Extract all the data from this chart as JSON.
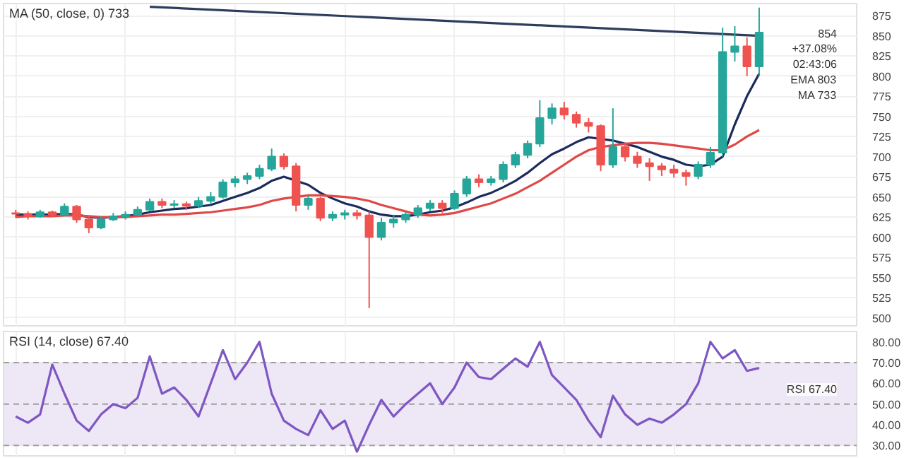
{
  "chart_data": [
    {
      "type": "candlestick",
      "categories": [
        null,
        null,
        null,
        null,
        null,
        null,
        null,
        null,
        null,
        null,
        null,
        null,
        null,
        null,
        null,
        null,
        null,
        null,
        null,
        null,
        null,
        null,
        null,
        null,
        null,
        null,
        null,
        null,
        null,
        null,
        null,
        null,
        null,
        null,
        null,
        null,
        null,
        null,
        null,
        null,
        null,
        null,
        null,
        null,
        null,
        null,
        null,
        null,
        null,
        null,
        null,
        null,
        null,
        null,
        null,
        null,
        null,
        null,
        null,
        null,
        null,
        null
      ],
      "ohlc": [
        [
          630,
          634,
          624,
          629
        ],
        [
          629,
          632,
          622,
          626
        ],
        [
          626,
          634,
          624,
          631
        ],
        [
          631,
          633,
          625,
          628
        ],
        [
          628,
          642,
          626,
          638
        ],
        [
          638,
          640,
          618,
          622
        ],
        [
          622,
          626,
          605,
          612
        ],
        [
          612,
          626,
          610,
          622
        ],
        [
          622,
          630,
          620,
          626
        ],
        [
          626,
          632,
          622,
          628
        ],
        [
          628,
          638,
          626,
          634
        ],
        [
          634,
          648,
          632,
          644
        ],
        [
          644,
          648,
          636,
          640
        ],
        [
          640,
          646,
          636,
          641
        ],
        [
          641,
          644,
          634,
          639
        ],
        [
          639,
          650,
          636,
          645
        ],
        [
          645,
          656,
          642,
          650
        ],
        [
          650,
          672,
          648,
          668
        ],
        [
          668,
          676,
          662,
          672
        ],
        [
          672,
          680,
          666,
          676
        ],
        [
          676,
          690,
          672,
          685
        ],
        [
          685,
          710,
          682,
          700
        ],
        [
          700,
          704,
          684,
          688
        ],
        [
          688,
          692,
          632,
          640
        ],
        [
          640,
          652,
          634,
          648
        ],
        [
          648,
          650,
          620,
          624
        ],
        [
          624,
          632,
          620,
          628
        ],
        [
          628,
          634,
          622,
          630
        ],
        [
          630,
          634,
          622,
          627
        ],
        [
          627,
          632,
          512,
          600
        ],
        [
          600,
          624,
          596,
          618
        ],
        [
          618,
          628,
          612,
          622
        ],
        [
          622,
          632,
          618,
          628
        ],
        [
          628,
          640,
          624,
          636
        ],
        [
          636,
          646,
          632,
          642
        ],
        [
          642,
          646,
          630,
          636
        ],
        [
          636,
          658,
          634,
          654
        ],
        [
          654,
          676,
          650,
          672
        ],
        [
          672,
          678,
          662,
          668
        ],
        [
          668,
          676,
          664,
          672
        ],
        [
          672,
          694,
          668,
          690
        ],
        [
          690,
          706,
          686,
          702
        ],
        [
          702,
          720,
          698,
          716
        ],
        [
          716,
          770,
          712,
          748
        ],
        [
          748,
          766,
          740,
          760
        ],
        [
          760,
          768,
          746,
          752
        ],
        [
          752,
          756,
          736,
          742
        ],
        [
          742,
          748,
          730,
          738
        ],
        [
          738,
          740,
          682,
          690
        ],
        [
          690,
          760,
          686,
          712
        ],
        [
          712,
          716,
          694,
          700
        ],
        [
          700,
          706,
          686,
          692
        ],
        [
          692,
          698,
          670,
          688
        ],
        [
          688,
          692,
          676,
          684
        ],
        [
          684,
          690,
          674,
          680
        ],
        [
          680,
          684,
          664,
          676
        ],
        [
          676,
          694,
          672,
          690
        ],
        [
          690,
          712,
          686,
          705
        ],
        [
          705,
          860,
          700,
          830
        ],
        [
          830,
          862,
          818,
          837
        ],
        [
          837,
          848,
          800,
          812
        ],
        [
          812,
          885,
          800,
          854
        ]
      ],
      "series": [
        {
          "type": "line",
          "color": "#1b2a5c",
          "values": [
            628,
            628,
            628,
            628,
            629,
            628,
            625,
            624,
            625,
            626,
            628,
            631,
            633,
            635,
            636,
            638,
            640,
            645,
            650,
            655,
            661,
            670,
            675,
            670,
            665,
            655,
            648,
            642,
            638,
            632,
            628,
            626,
            626,
            628,
            631,
            633,
            637,
            643,
            650,
            655,
            662,
            670,
            680,
            692,
            703,
            710,
            718,
            724,
            722,
            720,
            716,
            712,
            706,
            700,
            696,
            690,
            688,
            690,
            700,
            740,
            775,
            803
          ]
        },
        {
          "type": "line",
          "color": "#e04848",
          "values": [
            625,
            626,
            626,
            626,
            627,
            627,
            626,
            625,
            625,
            625,
            626,
            627,
            628,
            628,
            629,
            630,
            631,
            633,
            635,
            637,
            640,
            645,
            648,
            650,
            652,
            652,
            651,
            650,
            648,
            645,
            640,
            636,
            632,
            628,
            627,
            628,
            630,
            634,
            638,
            642,
            648,
            654,
            662,
            670,
            680,
            690,
            700,
            708,
            712,
            714,
            716,
            717,
            717,
            716,
            714,
            712,
            710,
            708,
            708,
            715,
            725,
            733
          ]
        },
        {
          "type": "line",
          "color": "#2e3d5c",
          "values": [
            null,
            null,
            null,
            null,
            null,
            null,
            null,
            null,
            null,
            null,
            null,
            886,
            null,
            null,
            null,
            null,
            null,
            null,
            null,
            null,
            null,
            null,
            null,
            null,
            null,
            null,
            null,
            null,
            null,
            null,
            null,
            null,
            null,
            null,
            null,
            null,
            null,
            null,
            null,
            null,
            null,
            null,
            null,
            null,
            null,
            null,
            null,
            null,
            null,
            null,
            null,
            null,
            null,
            null,
            null,
            null,
            null,
            null,
            null,
            null,
            null,
            850
          ]
        }
      ],
      "ylim": [
        490,
        890
      ],
      "yticks": [
        500,
        525,
        550,
        575,
        600,
        625,
        650,
        675,
        700,
        725,
        750,
        775,
        800,
        825,
        850,
        875
      ],
      "grid": true,
      "tick_labels": "y",
      "annotations": [
        "MA (50, close, 0) 733",
        "854",
        "+37.08%",
        "02:43:06",
        "EMA 803",
        "MA 733"
      ]
    },
    {
      "type": "line",
      "categories": [
        null,
        null,
        null,
        null,
        null,
        null,
        null,
        null,
        null,
        null,
        null,
        null,
        null,
        null,
        null,
        null,
        null,
        null,
        null,
        null,
        null,
        null,
        null,
        null,
        null,
        null,
        null,
        null,
        null,
        null,
        null,
        null,
        null,
        null,
        null,
        null,
        null,
        null,
        null,
        null,
        null,
        null,
        null,
        null,
        null,
        null,
        null,
        null,
        null,
        null,
        null,
        null,
        null,
        null,
        null,
        null,
        null,
        null,
        null,
        null,
        null,
        null
      ],
      "series": [
        {
          "color": "#7e57c2",
          "values": [
            44,
            41,
            45,
            69,
            55,
            42,
            37,
            45,
            50,
            48,
            53,
            73,
            55,
            58,
            52,
            44,
            60,
            76,
            62,
            70,
            80,
            55,
            42,
            38,
            35,
            47,
            38,
            42,
            27,
            40,
            52,
            44,
            50,
            55,
            60,
            50,
            58,
            70,
            63,
            62,
            67,
            72,
            68,
            80,
            64,
            58,
            52,
            42,
            34,
            54,
            45,
            40,
            43,
            41,
            45,
            50,
            60,
            80,
            72,
            76,
            66,
            67.4
          ]
        }
      ],
      "ylim": [
        25,
        85
      ],
      "yticks": [
        {
          "value": 30,
          "label": "30.00"
        },
        {
          "value": 40,
          "label": "40.00"
        },
        {
          "value": 50,
          "label": "50.00"
        },
        {
          "value": 60,
          "label": "60.00"
        },
        {
          "value": 70,
          "label": "70.00"
        },
        {
          "value": 80,
          "label": "80.00"
        }
      ],
      "ref_lines": [
        {
          "axis": "y",
          "value": 30,
          "line_style": "dashed",
          "color": "#9e9e9e"
        },
        {
          "axis": "y",
          "value": 50,
          "line_style": "dashed",
          "color": "#9e9e9e"
        },
        {
          "axis": "y",
          "value": 70,
          "line_style": "dashed",
          "color": "#9e9e9e"
        }
      ],
      "bands": [
        {
          "axis": "y",
          "from": 30,
          "to": 70,
          "color": "#ede7f6"
        }
      ],
      "grid": "x",
      "tick_labels": "y",
      "annotations": [
        "RSI (14, close) 67.40",
        "RSI 67.40"
      ]
    }
  ]
}
